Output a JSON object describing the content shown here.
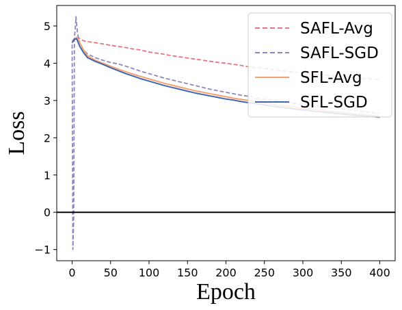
{
  "chart_data": {
    "type": "line",
    "title": "",
    "xlabel": "Epoch",
    "ylabel": "Loss",
    "xlim": [
      -20,
      420
    ],
    "ylim": [
      -1.3,
      5.55
    ],
    "xticks": [
      0,
      50,
      100,
      150,
      200,
      250,
      300,
      350,
      400
    ],
    "yticks": [
      -1,
      0,
      1,
      2,
      3,
      4,
      5
    ],
    "grid": false,
    "reference_line": {
      "y": 0,
      "color": "#000000"
    },
    "legend_position": "top-right",
    "series": [
      {
        "name": "SAFL-Avg",
        "color": "#e8737b",
        "style": "dashed",
        "points": [
          [
            0,
            4.55
          ],
          [
            3,
            4.62
          ],
          [
            6,
            4.68
          ],
          [
            10,
            4.66
          ],
          [
            15,
            4.6
          ],
          [
            20,
            4.58
          ],
          [
            30,
            4.55
          ],
          [
            40,
            4.52
          ],
          [
            50,
            4.48
          ],
          [
            60,
            4.45
          ],
          [
            70,
            4.42
          ],
          [
            80,
            4.38
          ],
          [
            90,
            4.35
          ],
          [
            100,
            4.3
          ],
          [
            110,
            4.27
          ],
          [
            120,
            4.24
          ],
          [
            130,
            4.2
          ],
          [
            140,
            4.17
          ],
          [
            150,
            4.14
          ],
          [
            160,
            4.11
          ],
          [
            170,
            4.08
          ],
          [
            180,
            4.05
          ],
          [
            190,
            4.02
          ],
          [
            200,
            4.0
          ],
          [
            210,
            3.97
          ],
          [
            220,
            3.94
          ],
          [
            230,
            3.9
          ],
          [
            240,
            3.88
          ],
          [
            250,
            3.86
          ],
          [
            260,
            3.83
          ],
          [
            270,
            3.8
          ],
          [
            280,
            3.78
          ],
          [
            290,
            3.76
          ],
          [
            300,
            3.74
          ],
          [
            310,
            3.72
          ],
          [
            320,
            3.7
          ],
          [
            330,
            3.68
          ],
          [
            340,
            3.66
          ],
          [
            350,
            3.64
          ],
          [
            360,
            3.62
          ],
          [
            370,
            3.6
          ],
          [
            380,
            3.59
          ],
          [
            390,
            3.58
          ],
          [
            400,
            3.56
          ]
        ]
      },
      {
        "name": "SAFL-SGD",
        "color": "#8d85c0",
        "style": "dashed",
        "points": [
          [
            0,
            4.5
          ],
          [
            1,
            -1.0
          ],
          [
            2,
            -0.2
          ],
          [
            3,
            4.7
          ],
          [
            4,
            4.9
          ],
          [
            5,
            5.25
          ],
          [
            7,
            4.8
          ],
          [
            10,
            4.55
          ],
          [
            15,
            4.35
          ],
          [
            20,
            4.25
          ],
          [
            30,
            4.15
          ],
          [
            40,
            4.08
          ],
          [
            50,
            4.02
          ],
          [
            60,
            3.98
          ],
          [
            70,
            3.92
          ],
          [
            80,
            3.85
          ],
          [
            90,
            3.78
          ],
          [
            100,
            3.72
          ],
          [
            110,
            3.66
          ],
          [
            120,
            3.6
          ],
          [
            130,
            3.55
          ],
          [
            140,
            3.5
          ],
          [
            150,
            3.45
          ],
          [
            160,
            3.4
          ],
          [
            170,
            3.35
          ],
          [
            180,
            3.3
          ],
          [
            190,
            3.26
          ],
          [
            200,
            3.22
          ],
          [
            210,
            3.18
          ],
          [
            220,
            3.14
          ],
          [
            230,
            3.11
          ],
          [
            240,
            3.07
          ],
          [
            250,
            3.04
          ],
          [
            260,
            3.01
          ],
          [
            270,
            2.98
          ],
          [
            280,
            2.95
          ],
          [
            290,
            2.92
          ],
          [
            300,
            2.89
          ],
          [
            310,
            2.87
          ],
          [
            320,
            2.84
          ],
          [
            330,
            2.82
          ],
          [
            340,
            2.79
          ],
          [
            350,
            2.77
          ],
          [
            360,
            2.75
          ],
          [
            370,
            2.73
          ],
          [
            380,
            2.7
          ],
          [
            390,
            2.68
          ],
          [
            400,
            2.66
          ]
        ]
      },
      {
        "name": "SFL-Avg",
        "color": "#f4a06e",
        "style": "solid",
        "points": [
          [
            0,
            4.6
          ],
          [
            3,
            4.66
          ],
          [
            6,
            4.7
          ],
          [
            10,
            4.55
          ],
          [
            15,
            4.35
          ],
          [
            20,
            4.2
          ],
          [
            30,
            4.08
          ],
          [
            40,
            4.0
          ],
          [
            50,
            3.92
          ],
          [
            60,
            3.84
          ],
          [
            70,
            3.77
          ],
          [
            80,
            3.7
          ],
          [
            90,
            3.64
          ],
          [
            100,
            3.58
          ],
          [
            110,
            3.52
          ],
          [
            120,
            3.46
          ],
          [
            130,
            3.41
          ],
          [
            140,
            3.36
          ],
          [
            150,
            3.31
          ],
          [
            160,
            3.26
          ],
          [
            170,
            3.22
          ],
          [
            180,
            3.18
          ],
          [
            190,
            3.14
          ],
          [
            200,
            3.1
          ],
          [
            210,
            3.06
          ],
          [
            220,
            3.03
          ],
          [
            230,
            3.0
          ],
          [
            240,
            2.96
          ],
          [
            250,
            2.93
          ],
          [
            260,
            2.9
          ],
          [
            270,
            2.87
          ],
          [
            280,
            2.85
          ],
          [
            290,
            2.82
          ],
          [
            300,
            2.79
          ],
          [
            310,
            2.77
          ],
          [
            320,
            2.74
          ],
          [
            330,
            2.72
          ],
          [
            340,
            2.7
          ],
          [
            350,
            2.68
          ],
          [
            360,
            2.66
          ],
          [
            370,
            2.64
          ],
          [
            380,
            2.62
          ],
          [
            390,
            2.6
          ],
          [
            400,
            2.58
          ]
        ]
      },
      {
        "name": "SFL-SGD",
        "color": "#3f66b0",
        "style": "solid",
        "points": [
          [
            0,
            4.55
          ],
          [
            3,
            4.65
          ],
          [
            6,
            4.65
          ],
          [
            10,
            4.45
          ],
          [
            15,
            4.28
          ],
          [
            20,
            4.15
          ],
          [
            30,
            4.05
          ],
          [
            40,
            3.97
          ],
          [
            50,
            3.88
          ],
          [
            60,
            3.8
          ],
          [
            70,
            3.72
          ],
          [
            80,
            3.65
          ],
          [
            90,
            3.58
          ],
          [
            100,
            3.52
          ],
          [
            110,
            3.46
          ],
          [
            120,
            3.4
          ],
          [
            130,
            3.35
          ],
          [
            140,
            3.3
          ],
          [
            150,
            3.25
          ],
          [
            160,
            3.2
          ],
          [
            170,
            3.16
          ],
          [
            180,
            3.12
          ],
          [
            190,
            3.08
          ],
          [
            200,
            3.04
          ],
          [
            210,
            3.01
          ],
          [
            220,
            2.97
          ],
          [
            230,
            2.94
          ],
          [
            240,
            2.91
          ],
          [
            250,
            2.88
          ],
          [
            260,
            2.85
          ],
          [
            270,
            2.82
          ],
          [
            280,
            2.8
          ],
          [
            290,
            2.77
          ],
          [
            300,
            2.75
          ],
          [
            310,
            2.72
          ],
          [
            320,
            2.7
          ],
          [
            330,
            2.68
          ],
          [
            340,
            2.66
          ],
          [
            350,
            2.64
          ],
          [
            360,
            2.62
          ],
          [
            370,
            2.6
          ],
          [
            380,
            2.59
          ],
          [
            390,
            2.57
          ],
          [
            400,
            2.55
          ]
        ]
      }
    ]
  }
}
